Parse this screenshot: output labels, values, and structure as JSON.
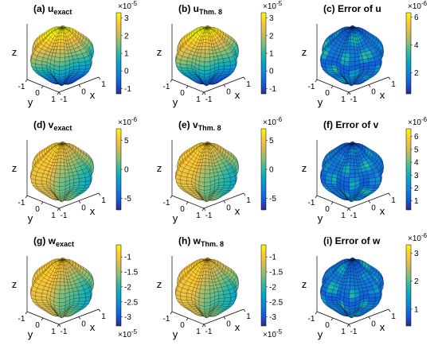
{
  "chart_data": [
    {
      "type": "surface3d",
      "title": "(a) u",
      "title_sub": "exact",
      "axes": {
        "x": "x",
        "y": "y",
        "z": "z"
      },
      "xticks": [
        "-1",
        "0",
        "1"
      ],
      "yticks": [
        "-1",
        "0",
        "1"
      ],
      "colorbar": {
        "ticks": [
          "3",
          "2",
          "1",
          "0",
          "-1"
        ],
        "range": [
          -1.3,
          3.3
        ],
        "exponent": "×10",
        "exponent_power": "-5",
        "exponent_pos": "top"
      },
      "surface": {
        "pattern": "gradient",
        "map": "parula"
      }
    },
    {
      "type": "surface3d",
      "title": "(b) u",
      "title_sub": "Thm. 8",
      "axes": {
        "x": "x",
        "y": "y",
        "z": "z"
      },
      "xticks": [
        "-1",
        "0",
        "1"
      ],
      "yticks": [
        "-1",
        "0",
        "1"
      ],
      "colorbar": {
        "ticks": [
          "3",
          "2",
          "1",
          "0",
          "-1"
        ],
        "range": [
          -1.3,
          3.3
        ],
        "exponent": "×10",
        "exponent_power": "-5",
        "exponent_pos": "top"
      },
      "surface": {
        "pattern": "gradient",
        "map": "parula"
      }
    },
    {
      "type": "surface3d",
      "title": "(c) Error of u",
      "title_sub": "",
      "axes": {
        "x": "x",
        "y": "y",
        "z": "z"
      },
      "xticks": [
        "-1",
        "0",
        "1"
      ],
      "yticks": [
        "-1",
        "0",
        "1"
      ],
      "colorbar": {
        "ticks": [
          "6",
          "4",
          "2"
        ],
        "range": [
          0.5,
          6.3
        ],
        "exponent": "×10",
        "exponent_power": "-6",
        "exponent_pos": "top"
      },
      "surface": {
        "pattern": "error",
        "map": "parula"
      }
    },
    {
      "type": "surface3d",
      "title": "(d) v",
      "title_sub": "exact",
      "axes": {
        "x": "x",
        "y": "y",
        "z": "z"
      },
      "xticks": [
        "-1",
        "0",
        "1"
      ],
      "yticks": [
        "-1",
        "0",
        "1"
      ],
      "colorbar": {
        "ticks": [
          "5",
          "0",
          "-5"
        ],
        "range": [
          -7,
          7
        ],
        "exponent": "×10",
        "exponent_power": "-6",
        "exponent_pos": "top"
      },
      "surface": {
        "pattern": "yellow",
        "map": "parula"
      }
    },
    {
      "type": "surface3d",
      "title": "(e) v",
      "title_sub": "Thm. 8",
      "axes": {
        "x": "x",
        "y": "y",
        "z": "z"
      },
      "xticks": [
        "-1",
        "0",
        "1"
      ],
      "yticks": [
        "-1",
        "0",
        "1"
      ],
      "colorbar": {
        "ticks": [
          "5",
          "0",
          "-5"
        ],
        "range": [
          -7,
          7
        ],
        "exponent": "×10",
        "exponent_power": "-6",
        "exponent_pos": "top"
      },
      "surface": {
        "pattern": "yellow",
        "map": "parula"
      }
    },
    {
      "type": "surface3d",
      "title": "(f) Error of v",
      "title_sub": "",
      "axes": {
        "x": "x",
        "y": "y",
        "z": "z"
      },
      "xticks": [
        "-1",
        "0",
        "1"
      ],
      "yticks": [
        "-1",
        "0",
        "1"
      ],
      "colorbar": {
        "ticks": [
          "6",
          "5",
          "4",
          "3",
          "2",
          "1"
        ],
        "range": [
          0.3,
          6.6
        ],
        "exponent": "×10",
        "exponent_power": "-6",
        "exponent_pos": "top"
      },
      "surface": {
        "pattern": "error",
        "map": "parula"
      }
    },
    {
      "type": "surface3d",
      "title": "(g) w",
      "title_sub": "exact",
      "axes": {
        "x": "x",
        "y": "y",
        "z": "z"
      },
      "xticks": [
        "-1",
        "0",
        "1"
      ],
      "yticks": [
        "-1",
        "0",
        "1"
      ],
      "colorbar": {
        "ticks": [
          "-1",
          "-1.5",
          "-2",
          "-2.5",
          "-3"
        ],
        "range": [
          -3.3,
          -0.6
        ],
        "exponent": "×10",
        "exponent_power": "-5",
        "exponent_pos": "bottom"
      },
      "surface": {
        "pattern": "yellow",
        "map": "parula"
      }
    },
    {
      "type": "surface3d",
      "title": "(h) w",
      "title_sub": "Thm. 8",
      "axes": {
        "x": "x",
        "y": "y",
        "z": "z"
      },
      "xticks": [
        "-1",
        "0",
        "1"
      ],
      "yticks": [
        "-1",
        "0",
        "1"
      ],
      "colorbar": {
        "ticks": [
          "-1",
          "-1.5",
          "-2",
          "-2.5",
          "-3"
        ],
        "range": [
          -3.3,
          -0.6
        ],
        "exponent": "×10",
        "exponent_power": "-5",
        "exponent_pos": "bottom"
      },
      "surface": {
        "pattern": "yellow",
        "map": "parula"
      }
    },
    {
      "type": "surface3d",
      "title": "(i) Error of w",
      "title_sub": "",
      "axes": {
        "x": "x",
        "y": "y",
        "z": "z"
      },
      "xticks": [
        "-1",
        "0",
        "1"
      ],
      "yticks": [
        "-1",
        "0",
        "1"
      ],
      "colorbar": {
        "ticks": [
          "3",
          "2",
          "1"
        ],
        "range": [
          0.4,
          3.3
        ],
        "exponent": "×10",
        "exponent_power": "-6",
        "exponent_pos": "top"
      },
      "surface": {
        "pattern": "error",
        "map": "parula"
      }
    }
  ],
  "colors": {
    "parula": [
      "#352a87",
      "#0f5cdd",
      "#1481d6",
      "#06a4ca",
      "#2eb7a4",
      "#87bf77",
      "#d1bb59",
      "#fec832",
      "#f9fb0e"
    ],
    "mesh_line": "#000000"
  }
}
